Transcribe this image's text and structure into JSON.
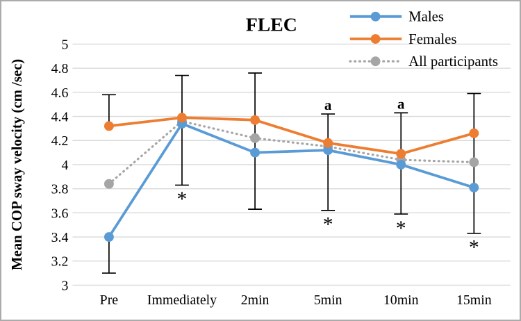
{
  "chart_data": {
    "type": "line",
    "title": "FLEC",
    "ylabel": "Mean COP sway velocity (cm /sec)",
    "xlabel": "",
    "categories": [
      "Pre",
      "Immediately",
      "2min",
      "5min",
      "10min",
      "15min"
    ],
    "series": [
      {
        "name": "Males",
        "color": "#5B9BD5",
        "style": "solid",
        "values": [
          3.4,
          4.34,
          4.1,
          4.12,
          4.0,
          3.81
        ]
      },
      {
        "name": "Females",
        "color": "#ED7D31",
        "style": "solid",
        "values": [
          4.32,
          4.39,
          4.37,
          4.18,
          4.09,
          4.26
        ]
      },
      {
        "name": "All participants",
        "color": "#A5A5A5",
        "style": "dotted",
        "values": [
          3.84,
          4.36,
          4.22,
          4.15,
          4.04,
          4.02
        ]
      }
    ],
    "ylim": [
      3,
      5
    ],
    "ytick_step": 0.2,
    "ytick_labels": [
      "5",
      "4.8",
      "4.6",
      "4.4",
      "4.2",
      "4",
      "3.8",
      "3.6",
      "3.4",
      "3.2",
      "3"
    ],
    "grid": "horizontal",
    "grid_color": "#D9D9D9",
    "error_bar_color": "#000000",
    "legend_position": "top-right",
    "error_bars": [
      {
        "category": "Pre",
        "segments": [
          [
            4.32,
            4.58
          ],
          [
            3.4,
            3.1
          ]
        ],
        "caps": [
          4.58,
          3.1
        ],
        "above": "",
        "below": ""
      },
      {
        "category": "Immediately",
        "segments": [
          [
            4.74,
            3.83
          ]
        ],
        "caps": [
          4.74,
          3.83
        ],
        "above": "",
        "below": "*"
      },
      {
        "category": "2min",
        "segments": [
          [
            4.76,
            3.63
          ]
        ],
        "caps": [
          4.76,
          3.63
        ],
        "above": "",
        "below": ""
      },
      {
        "category": "5min",
        "segments": [
          [
            4.42,
            3.62
          ]
        ],
        "caps": [
          4.42,
          3.62
        ],
        "above": "a",
        "below": "*"
      },
      {
        "category": "10min",
        "segments": [
          [
            4.43,
            3.59
          ]
        ],
        "caps": [
          4.43,
          3.59
        ],
        "above": "a",
        "below": "*"
      },
      {
        "category": "15min",
        "segments": [
          [
            4.59,
            3.43
          ]
        ],
        "caps": [
          4.59,
          3.43
        ],
        "above": "",
        "below": "*"
      }
    ]
  }
}
